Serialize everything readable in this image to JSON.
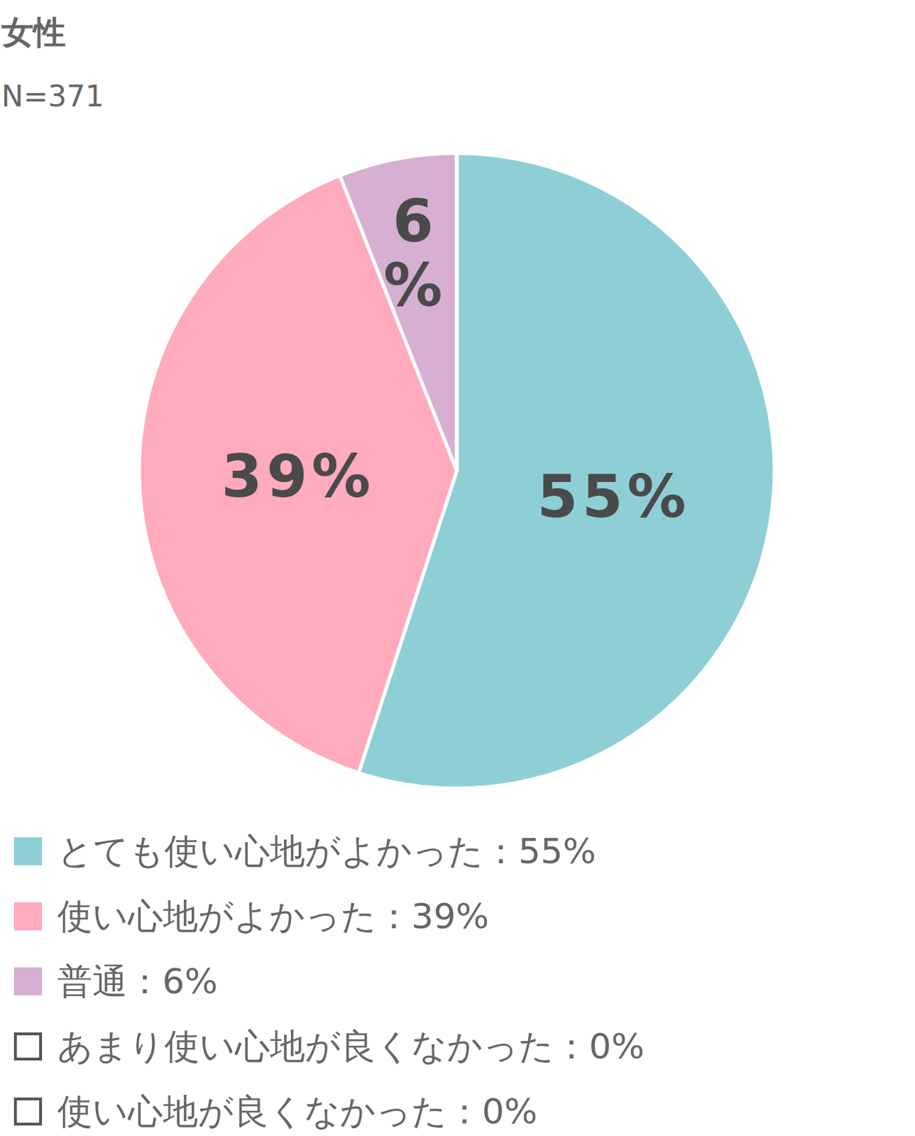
{
  "chart_data": {
    "type": "pie",
    "title": "女性",
    "subtitle": "N=371",
    "categories": [
      "とても使い心地がよかった：55%",
      "使い心地がよかった：39%",
      "普通：6%",
      "あまり使い心地が良くなかった：0%",
      "使い心地が良くなかった：0%"
    ],
    "values": [
      55,
      39,
      6,
      0,
      0
    ],
    "value_labels": [
      "55%",
      "39%",
      "6%",
      "0%",
      "0%"
    ],
    "colors": [
      "#8ecfd6",
      "#ffaabd",
      "#d6afd1",
      "#ffffff",
      "#ffffff"
    ],
    "data_labels": true,
    "legend": "bottom"
  }
}
